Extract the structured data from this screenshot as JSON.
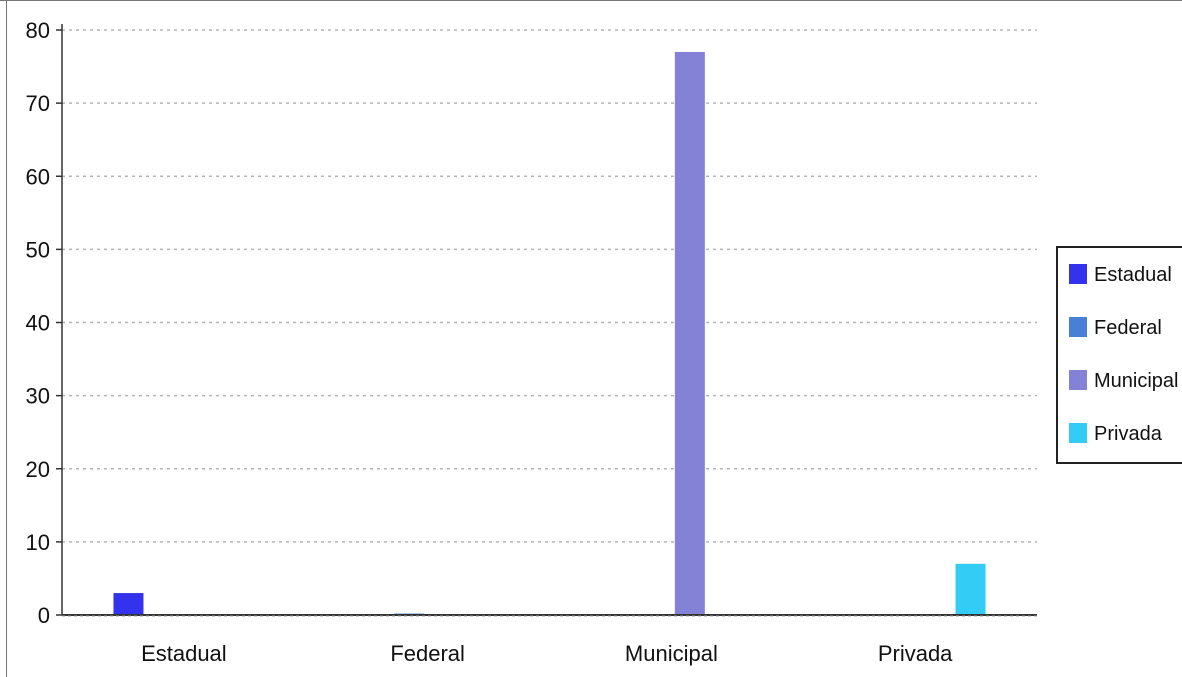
{
  "chart_data": {
    "type": "bar",
    "title": "",
    "xlabel": "",
    "ylabel": "",
    "ylim": [
      0,
      80
    ],
    "yticks": [
      0,
      10,
      20,
      30,
      40,
      50,
      60,
      70,
      80
    ],
    "grid": true,
    "legend_position": "right",
    "categories": [
      "Estadual",
      "Federal",
      "Municipal",
      "Privada"
    ],
    "series": [
      {
        "name": "Estadual",
        "color": "#3333ee",
        "values": [
          3,
          0,
          0,
          0
        ]
      },
      {
        "name": "Federal",
        "color": "#4a7fd6",
        "values": [
          0,
          0.2,
          0,
          0
        ]
      },
      {
        "name": "Municipal",
        "color": "#8482d6",
        "values": [
          0,
          0,
          77,
          0
        ]
      },
      {
        "name": "Privada",
        "color": "#33ccf5",
        "values": [
          0,
          0,
          0,
          7
        ]
      }
    ]
  }
}
